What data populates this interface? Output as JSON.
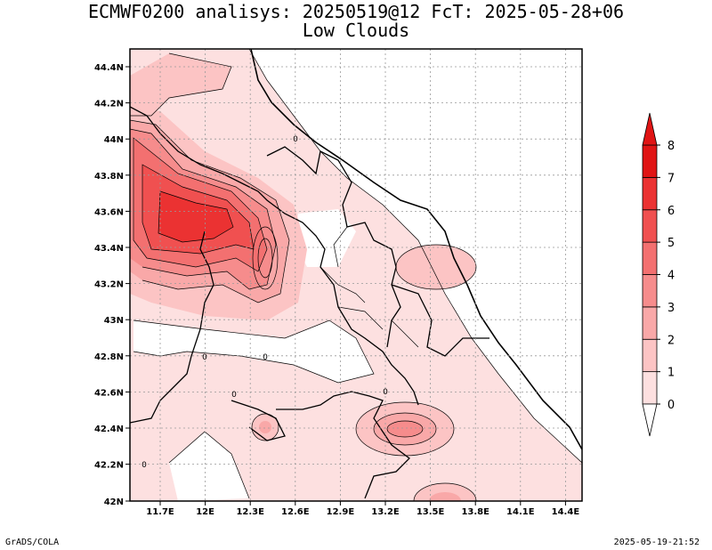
{
  "title": {
    "line1": "ECMWF0200 analisys: 20250519@12 FcT: 2025-05-28+06",
    "line2": "Low Clouds"
  },
  "footer": {
    "left": "GrADS/COLA",
    "right": "2025-05-19-21:52"
  },
  "map": {
    "lat_ticks": [
      "44.4N",
      "44.2N",
      "44N",
      "43.8N",
      "43.6N",
      "43.4N",
      "43.2N",
      "43N",
      "42.8N",
      "42.6N",
      "42.4N",
      "42.2N",
      "42N"
    ],
    "lon_ticks": [
      "11.7E",
      "12E",
      "12.3E",
      "12.6E",
      "12.9E",
      "13.2E",
      "13.5E",
      "13.8E",
      "14.1E",
      "14.4E"
    ],
    "contour_labels": [
      "0",
      "0",
      "0",
      "0",
      "0",
      "0"
    ]
  },
  "colorbar": {
    "levels": [
      "0",
      "1",
      "2",
      "3",
      "4",
      "5",
      "6",
      "7",
      "8"
    ],
    "colors": [
      "#ffffff",
      "#fde0e0",
      "#fcc4c4",
      "#f9a8a8",
      "#f68c8c",
      "#f37070",
      "#f05050",
      "#eb3232",
      "#e01414"
    ]
  }
}
